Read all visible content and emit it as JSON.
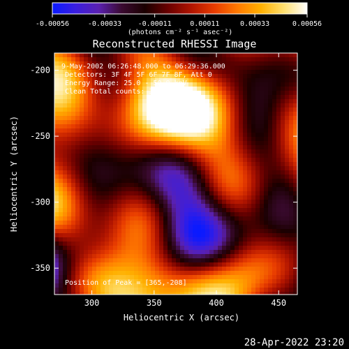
{
  "colorbar": {
    "tick_labels": [
      "-0.00056",
      "-0.00033",
      "-0.00011",
      "0.00011",
      "0.00033",
      "0.00056"
    ],
    "tick_values": [
      -0.00056,
      -0.00033,
      -0.00011,
      0.00011,
      0.00033,
      0.00056
    ],
    "unit_label": "(photons cm⁻² s⁻¹ asec⁻²)",
    "colormap": [
      "#0a1aff",
      "#3a1ee0",
      "#5a20b0",
      "#3a0a30",
      "#1a0000",
      "#6a0000",
      "#b01400",
      "#e83c00",
      "#ff7a00",
      "#ffb000",
      "#ffe070",
      "#ffffff"
    ]
  },
  "chart_data": {
    "type": "heatmap",
    "title": "Reconstructed RHESSI Image",
    "xlabel": "Heliocentric X (arcsec)",
    "ylabel": "Heliocentric Y (arcsec)",
    "xlim": [
      270,
      465
    ],
    "ylim": [
      -370,
      -187
    ],
    "x_ticks": [
      300,
      350,
      400,
      450
    ],
    "x_tick_labels": [
      "300",
      "350",
      "400",
      "450"
    ],
    "y_ticks": [
      -200,
      -250,
      -300,
      -350
    ],
    "y_tick_labels": [
      "-200",
      "-250",
      "-300",
      "-350"
    ],
    "color_range": [
      -0.00056,
      0.00056
    ],
    "annotations": [
      "9-May-2002 06:26:48.000 to 06:29:36.000",
      "Detectors: 3F 4F 5F 6F 7F 8F, Att 0",
      "Energy Range: 25.0 - 50.0 keV",
      "Clean    Total counts: 3.56e+03"
    ],
    "peak_label": "Position of Peak = [365,-208]",
    "peak": [
      365,
      -208
    ]
  },
  "timestamp": "28-Apr-2022 23:20"
}
